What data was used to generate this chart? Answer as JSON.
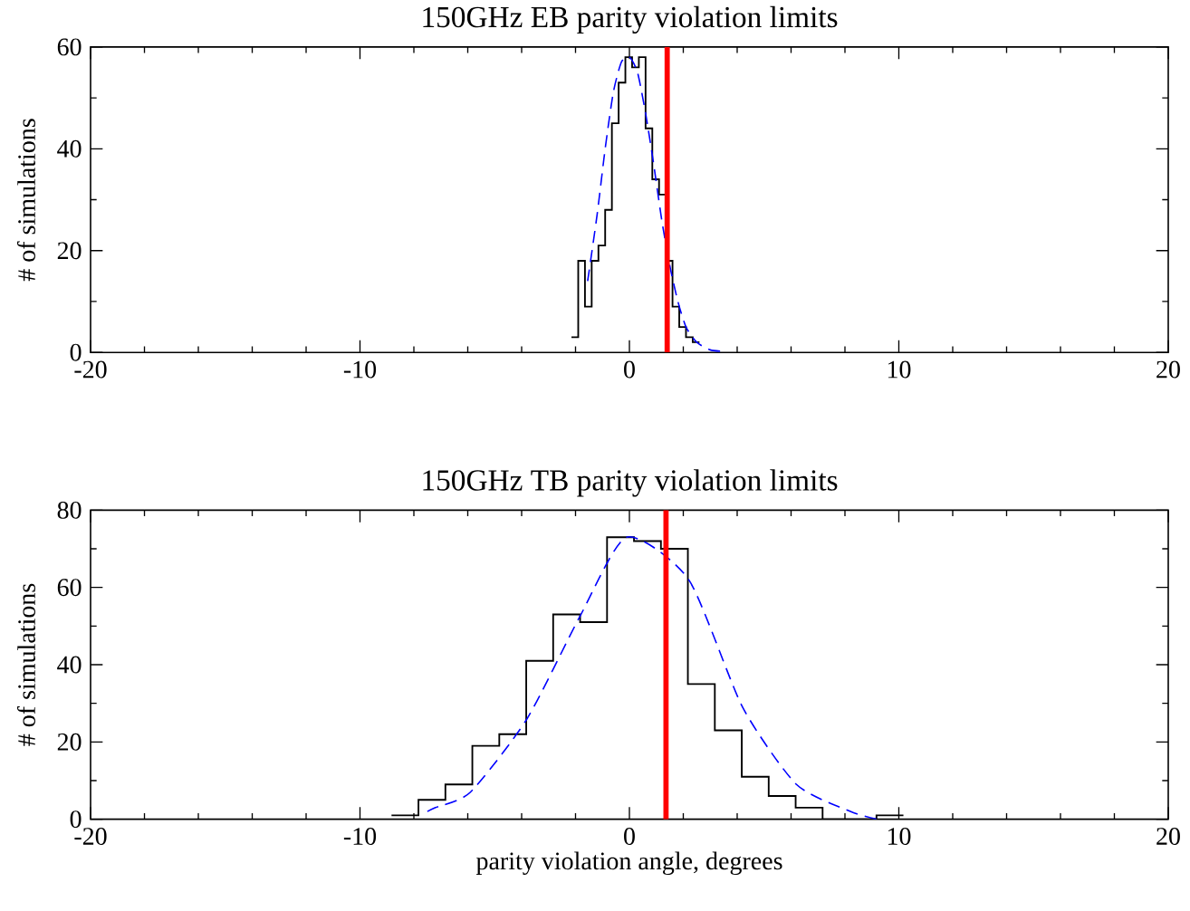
{
  "chart_data": [
    {
      "type": "histogram",
      "title": "150GHz EB parity violation limits",
      "ylabel": "# of simulations",
      "xlim": [
        -20,
        20
      ],
      "xticks": [
        -20,
        -10,
        0,
        10,
        20
      ],
      "ylim": [
        0,
        60
      ],
      "yticks": [
        0,
        20,
        40,
        60
      ],
      "series": [
        {
          "color": "#000000",
          "bins": [
            -2.15,
            -1.9,
            -1.65,
            -1.4,
            -1.15,
            -0.9,
            -0.65,
            -0.4,
            -0.15,
            0.1,
            0.35,
            0.6,
            0.85,
            1.1,
            1.35,
            1.6,
            1.85,
            2.1,
            2.35,
            2.6
          ],
          "values": [
            3,
            18,
            9,
            18,
            21,
            28,
            45,
            53,
            58,
            56,
            58,
            44,
            34,
            31,
            18,
            9,
            5,
            3,
            2
          ]
        },
        {
          "type": "line",
          "color": "#0000ff",
          "line_style": "dashed",
          "x": [
            -1.55,
            -1.2,
            -0.9,
            -0.6,
            -0.3,
            0,
            0.3,
            0.6,
            0.9,
            1.2,
            1.5,
            1.8,
            2.1,
            2.5,
            3.0,
            3.5
          ],
          "values": [
            14,
            27,
            40,
            51,
            57,
            58,
            55,
            47,
            37,
            26,
            17,
            10,
            5,
            2,
            0.5,
            0.2
          ]
        }
      ],
      "ref_lines": [
        {
          "axis": "x",
          "value": 1.4,
          "color": "#ff0000"
        }
      ]
    },
    {
      "type": "histogram",
      "title": "150GHz TB parity violation limits",
      "xlabel": "parity violation angle, degrees",
      "ylabel": "# of simulations",
      "xlim": [
        -20,
        20
      ],
      "xticks": [
        -20,
        -10,
        0,
        10,
        20
      ],
      "ylim": [
        0,
        80
      ],
      "yticks": [
        0,
        20,
        40,
        60,
        80
      ],
      "series": [
        {
          "color": "#000000",
          "bins": [
            -8.83,
            -7.83,
            -6.83,
            -5.83,
            -4.83,
            -3.83,
            -2.83,
            -1.83,
            -0.83,
            0.17,
            1.17,
            2.17,
            3.17,
            4.17,
            5.17,
            6.17,
            7.17,
            8.17,
            9.17,
            10.17
          ],
          "values": [
            1,
            5,
            9,
            19,
            22,
            41,
            53,
            51,
            73,
            72,
            70,
            35,
            23,
            11,
            6,
            3,
            0,
            0,
            1
          ]
        },
        {
          "type": "line",
          "color": "#0000ff",
          "line_style": "dashed",
          "x": [
            -7.5,
            -7.2,
            -5.9,
            -3.8,
            -1.8,
            -0.1,
            2.2,
            4.2,
            6.2,
            8.2,
            9.2
          ],
          "values": [
            2,
            3,
            7,
            26,
            53,
            73,
            62,
            29,
            9,
            2,
            0
          ]
        }
      ],
      "ref_lines": [
        {
          "axis": "x",
          "value": 1.36,
          "color": "#ff0000"
        }
      ]
    }
  ]
}
